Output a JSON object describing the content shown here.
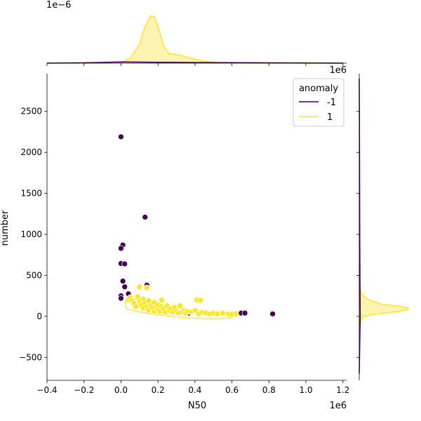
{
  "chart_data": {
    "type": "scatter",
    "title": "",
    "xlabel": "N50",
    "ylabel": "number",
    "x_offset_label": "1e6",
    "x_offset_label_top": "1e6",
    "top_marginal_offset_label": "1e−6",
    "xlim": [
      -0.4,
      1.22
    ],
    "ylim": [
      -780,
      2960
    ],
    "xticks": [
      -0.4,
      -0.2,
      0.0,
      0.2,
      0.4,
      0.6,
      0.8,
      1.0,
      1.2
    ],
    "xtick_labels": [
      "−0.4",
      "−0.2",
      "0.0",
      "0.2",
      "0.4",
      "0.6",
      "0.8",
      "1.0",
      "1.2"
    ],
    "yticks": [
      -500,
      0,
      500,
      1000,
      1500,
      2000,
      2500
    ],
    "ytick_labels": [
      "−500",
      "0",
      "500",
      "1000",
      "1500",
      "2000",
      "2500"
    ],
    "grid": false,
    "legend": {
      "title": "anomaly",
      "placement": "top-right",
      "entries": [
        {
          "label": "-1",
          "color": "#440154"
        },
        {
          "label": "1",
          "color": "#fde725"
        }
      ]
    },
    "colors": {
      "anomaly_-1": "#440154",
      "anomaly_1": "#fde725",
      "kde_fill": "#fdf3b2"
    },
    "series": [
      {
        "name": "-1",
        "color": "#440154",
        "points": [
          [
            0.0,
            2190
          ],
          [
            0.13,
            1210
          ],
          [
            0.01,
            870
          ],
          [
            0.0,
            830
          ],
          [
            0.0,
            645
          ],
          [
            0.02,
            640
          ],
          [
            0.01,
            430
          ],
          [
            0.02,
            360
          ],
          [
            0.0,
            250
          ],
          [
            0.0,
            220
          ],
          [
            0.04,
            275
          ],
          [
            0.14,
            380
          ],
          [
            0.37,
            40
          ],
          [
            0.65,
            40
          ],
          [
            0.67,
            40
          ],
          [
            0.82,
            30
          ]
        ]
      },
      {
        "name": "1",
        "color": "#fde725",
        "points": [
          [
            0.04,
            200
          ],
          [
            0.05,
            230
          ],
          [
            0.06,
            190
          ],
          [
            0.07,
            160
          ],
          [
            0.08,
            120
          ],
          [
            0.09,
            240
          ],
          [
            0.1,
            180
          ],
          [
            0.1,
            360
          ],
          [
            0.11,
            140
          ],
          [
            0.12,
            210
          ],
          [
            0.12,
            100
          ],
          [
            0.13,
            160
          ],
          [
            0.14,
            120
          ],
          [
            0.14,
            350
          ],
          [
            0.15,
            190
          ],
          [
            0.15,
            80
          ],
          [
            0.16,
            130
          ],
          [
            0.17,
            100
          ],
          [
            0.18,
            170
          ],
          [
            0.18,
            60
          ],
          [
            0.19,
            110
          ],
          [
            0.2,
            140
          ],
          [
            0.2,
            80
          ],
          [
            0.21,
            60
          ],
          [
            0.22,
            120
          ],
          [
            0.22,
            200
          ],
          [
            0.23,
            90
          ],
          [
            0.24,
            50
          ],
          [
            0.25,
            130
          ],
          [
            0.26,
            70
          ],
          [
            0.27,
            90
          ],
          [
            0.28,
            50
          ],
          [
            0.29,
            110
          ],
          [
            0.3,
            60
          ],
          [
            0.31,
            40
          ],
          [
            0.32,
            130
          ],
          [
            0.33,
            50
          ],
          [
            0.34,
            70
          ],
          [
            0.35,
            40
          ],
          [
            0.36,
            60
          ],
          [
            0.38,
            50
          ],
          [
            0.4,
            70
          ],
          [
            0.41,
            200
          ],
          [
            0.43,
            195
          ],
          [
            0.42,
            30
          ],
          [
            0.44,
            50
          ],
          [
            0.46,
            40
          ],
          [
            0.48,
            30
          ],
          [
            0.5,
            40
          ],
          [
            0.52,
            30
          ],
          [
            0.55,
            40
          ],
          [
            0.58,
            30
          ],
          [
            0.6,
            25
          ],
          [
            0.62,
            30
          ]
        ]
      }
    ],
    "marginal_x": {
      "type": "kde",
      "ylim": [
        0,
        3.2
      ],
      "series": [
        {
          "name": "1",
          "x": [
            -0.2,
            0.0,
            0.05,
            0.1,
            0.13,
            0.16,
            0.18,
            0.2,
            0.23,
            0.26,
            0.3,
            0.35,
            0.4,
            0.45,
            0.5,
            0.6,
            0.7,
            0.8,
            1.0,
            1.2
          ],
          "density": [
            0.0,
            0.05,
            0.3,
            1.2,
            2.3,
            3.0,
            2.95,
            2.3,
            1.1,
            0.6,
            0.55,
            0.4,
            0.25,
            0.12,
            0.06,
            0.02,
            0.01,
            0.005,
            0.0,
            0.0
          ]
        },
        {
          "name": "-1",
          "x": [
            -0.4,
            -0.2,
            0.0,
            0.2,
            0.4,
            0.6,
            0.8,
            1.0,
            1.2
          ],
          "density": [
            0.0,
            0.02,
            0.08,
            0.06,
            0.04,
            0.03,
            0.02,
            0.01,
            0.0
          ]
        }
      ]
    },
    "marginal_y": {
      "type": "kde",
      "series": [
        {
          "name": "1",
          "y": [
            -100,
            0,
            30,
            60,
            80,
            100,
            120,
            150,
            200,
            250,
            300,
            400
          ],
          "density": [
            0.0,
            0.08,
            0.35,
            0.8,
            0.98,
            1.0,
            0.85,
            0.45,
            0.2,
            0.08,
            0.03,
            0.0
          ]
        },
        {
          "name": "-1",
          "y": [
            -700,
            0,
            500,
            1000,
            2000,
            2900
          ],
          "density": [
            0.0,
            0.02,
            0.015,
            0.01,
            0.005,
            0.0
          ]
        }
      ]
    }
  }
}
